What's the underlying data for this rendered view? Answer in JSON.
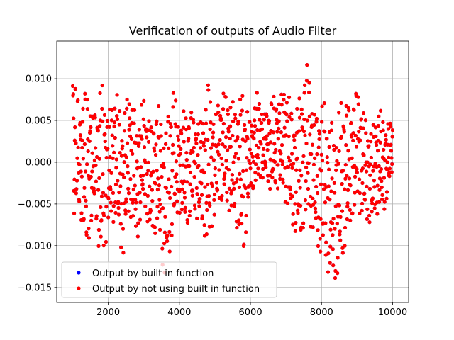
{
  "chart_data": {
    "type": "scatter",
    "title": "Verification of outputs of Audio Filter",
    "xlabel": "",
    "ylabel": "",
    "xlim": [
      550,
      10450
    ],
    "ylim": [
      -0.0168,
      0.0145
    ],
    "xticks": [
      2000,
      4000,
      6000,
      8000,
      10000
    ],
    "xtick_labels": [
      "2000",
      "4000",
      "6000",
      "8000",
      "10000"
    ],
    "yticks": [
      -0.015,
      -0.01,
      -0.005,
      0.0,
      0.005,
      0.01
    ],
    "ytick_labels": [
      "−0.015",
      "−0.010",
      "−0.005",
      "0.000",
      "0.005",
      "0.010"
    ],
    "grid": true,
    "legend_position": "lower-left",
    "x_range": [
      1000,
      10000
    ],
    "series": [
      {
        "name": "Output by built in function",
        "color": "#0000ff",
        "envelope_upper": [
          [
            1000,
            0.013
          ],
          [
            1200,
            0.007
          ],
          [
            1400,
            0.01
          ],
          [
            1600,
            0.006
          ],
          [
            1800,
            0.01
          ],
          [
            2000,
            0.006
          ],
          [
            2200,
            0.009
          ],
          [
            2400,
            0.006
          ],
          [
            2600,
            0.009
          ],
          [
            2800,
            0.005
          ],
          [
            3000,
            0.008
          ],
          [
            3200,
            0.005
          ],
          [
            3400,
            0.007
          ],
          [
            3600,
            0.004
          ],
          [
            3800,
            0.01
          ],
          [
            4000,
            0.005
          ],
          [
            4200,
            0.007
          ],
          [
            4400,
            0.006
          ],
          [
            4600,
            0.005
          ],
          [
            4800,
            0.01
          ],
          [
            5000,
            0.006
          ],
          [
            5200,
            0.009
          ],
          [
            5400,
            0.008
          ],
          [
            5600,
            0.007
          ],
          [
            5800,
            0.009
          ],
          [
            6000,
            0.005
          ],
          [
            6200,
            0.009
          ],
          [
            6400,
            0.006
          ],
          [
            6600,
            0.008
          ],
          [
            6800,
            0.008
          ],
          [
            7000,
            0.01
          ],
          [
            7200,
            0.006
          ],
          [
            7400,
            0.008
          ],
          [
            7600,
            0.013
          ],
          [
            7800,
            0.006
          ],
          [
            8000,
            0.008
          ],
          [
            8200,
            0.006
          ],
          [
            8400,
            0.004
          ],
          [
            8600,
            0.009
          ],
          [
            8800,
            0.007
          ],
          [
            9000,
            0.01
          ],
          [
            9200,
            0.006
          ],
          [
            9400,
            0.004
          ],
          [
            9600,
            0.007
          ],
          [
            9800,
            0.005
          ],
          [
            10000,
            0.005
          ]
        ],
        "envelope_lower": [
          [
            1000,
            -0.007
          ],
          [
            1200,
            -0.006
          ],
          [
            1400,
            -0.012
          ],
          [
            1600,
            -0.006
          ],
          [
            1800,
            -0.013
          ],
          [
            2000,
            -0.008
          ],
          [
            2200,
            -0.007
          ],
          [
            2400,
            -0.012
          ],
          [
            2600,
            -0.006
          ],
          [
            2800,
            -0.01
          ],
          [
            3000,
            -0.005
          ],
          [
            3200,
            -0.01
          ],
          [
            3400,
            -0.008
          ],
          [
            3600,
            -0.015
          ],
          [
            3800,
            -0.009
          ],
          [
            4000,
            -0.006
          ],
          [
            4200,
            -0.009
          ],
          [
            4400,
            -0.006
          ],
          [
            4600,
            -0.008
          ],
          [
            4800,
            -0.011
          ],
          [
            5000,
            -0.007
          ],
          [
            5200,
            -0.005
          ],
          [
            5400,
            -0.006
          ],
          [
            5600,
            -0.008
          ],
          [
            5800,
            -0.012
          ],
          [
            6000,
            -0.004
          ],
          [
            6200,
            -0.003
          ],
          [
            6400,
            -0.002
          ],
          [
            6600,
            -0.004
          ],
          [
            6800,
            -0.003
          ],
          [
            7000,
            -0.005
          ],
          [
            7200,
            -0.008
          ],
          [
            7400,
            -0.01
          ],
          [
            7600,
            -0.007
          ],
          [
            7800,
            -0.009
          ],
          [
            8000,
            -0.012
          ],
          [
            8200,
            -0.014
          ],
          [
            8400,
            -0.015
          ],
          [
            8600,
            -0.012
          ],
          [
            8800,
            -0.008
          ],
          [
            9000,
            -0.006
          ],
          [
            9200,
            -0.007
          ],
          [
            9400,
            -0.008
          ],
          [
            9600,
            -0.006
          ],
          [
            9800,
            -0.006
          ],
          [
            10000,
            -0.001
          ]
        ]
      },
      {
        "name": "Output by not using built in function",
        "color": "#ff0000",
        "envelope_upper": [
          [
            1000,
            0.013
          ],
          [
            1200,
            0.007
          ],
          [
            1400,
            0.01
          ],
          [
            1600,
            0.006
          ],
          [
            1800,
            0.01
          ],
          [
            2000,
            0.006
          ],
          [
            2200,
            0.009
          ],
          [
            2400,
            0.006
          ],
          [
            2600,
            0.009
          ],
          [
            2800,
            0.005
          ],
          [
            3000,
            0.008
          ],
          [
            3200,
            0.005
          ],
          [
            3400,
            0.007
          ],
          [
            3600,
            0.004
          ],
          [
            3800,
            0.01
          ],
          [
            4000,
            0.005
          ],
          [
            4200,
            0.007
          ],
          [
            4400,
            0.006
          ],
          [
            4600,
            0.005
          ],
          [
            4800,
            0.01
          ],
          [
            5000,
            0.006
          ],
          [
            5200,
            0.009
          ],
          [
            5400,
            0.008
          ],
          [
            5600,
            0.007
          ],
          [
            5800,
            0.009
          ],
          [
            6000,
            0.005
          ],
          [
            6200,
            0.009
          ],
          [
            6400,
            0.006
          ],
          [
            6600,
            0.008
          ],
          [
            6800,
            0.008
          ],
          [
            7000,
            0.01
          ],
          [
            7200,
            0.006
          ],
          [
            7400,
            0.008
          ],
          [
            7600,
            0.013
          ],
          [
            7800,
            0.006
          ],
          [
            8000,
            0.008
          ],
          [
            8200,
            0.006
          ],
          [
            8400,
            0.004
          ],
          [
            8600,
            0.009
          ],
          [
            8800,
            0.007
          ],
          [
            9000,
            0.01
          ],
          [
            9200,
            0.006
          ],
          [
            9400,
            0.004
          ],
          [
            9600,
            0.007
          ],
          [
            9800,
            0.005
          ],
          [
            10000,
            0.005
          ]
        ],
        "envelope_lower": [
          [
            1000,
            -0.007
          ],
          [
            1200,
            -0.006
          ],
          [
            1400,
            -0.012
          ],
          [
            1600,
            -0.006
          ],
          [
            1800,
            -0.013
          ],
          [
            2000,
            -0.008
          ],
          [
            2200,
            -0.007
          ],
          [
            2400,
            -0.012
          ],
          [
            2600,
            -0.006
          ],
          [
            2800,
            -0.01
          ],
          [
            3000,
            -0.005
          ],
          [
            3200,
            -0.01
          ],
          [
            3400,
            -0.008
          ],
          [
            3600,
            -0.015
          ],
          [
            3800,
            -0.009
          ],
          [
            4000,
            -0.006
          ],
          [
            4200,
            -0.009
          ],
          [
            4400,
            -0.006
          ],
          [
            4600,
            -0.008
          ],
          [
            4800,
            -0.011
          ],
          [
            5000,
            -0.007
          ],
          [
            5200,
            -0.005
          ],
          [
            5400,
            -0.006
          ],
          [
            5600,
            -0.008
          ],
          [
            5800,
            -0.012
          ],
          [
            6000,
            -0.004
          ],
          [
            6200,
            -0.003
          ],
          [
            6400,
            -0.002
          ],
          [
            6600,
            -0.004
          ],
          [
            6800,
            -0.003
          ],
          [
            7000,
            -0.005
          ],
          [
            7200,
            -0.008
          ],
          [
            7400,
            -0.01
          ],
          [
            7600,
            -0.007
          ],
          [
            7800,
            -0.009
          ],
          [
            8000,
            -0.012
          ],
          [
            8200,
            -0.014
          ],
          [
            8400,
            -0.015
          ],
          [
            8600,
            -0.012
          ],
          [
            8800,
            -0.008
          ],
          [
            9000,
            -0.006
          ],
          [
            9200,
            -0.007
          ],
          [
            9400,
            -0.008
          ],
          [
            9600,
            -0.006
          ],
          [
            9800,
            -0.006
          ],
          [
            10000,
            -0.001
          ]
        ]
      }
    ]
  }
}
